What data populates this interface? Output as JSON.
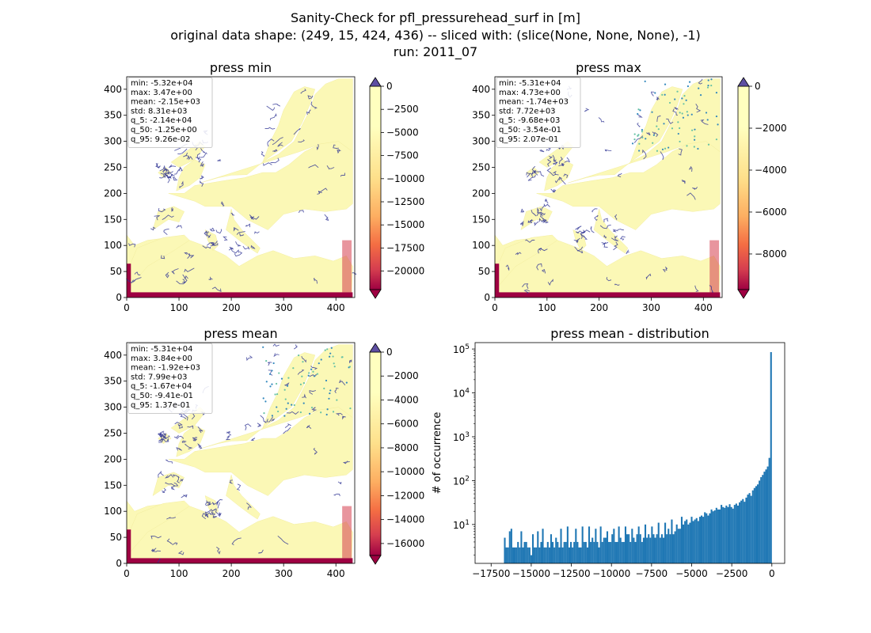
{
  "figure": {
    "title_lines": [
      "Sanity-Check for pfl_pressurehead_surf in [m]",
      "original data shape: (249, 15, 424, 436) -- sliced with: (slice(None, None, None), -1)",
      "run: 2011_07"
    ]
  },
  "colors": {
    "map_colormap": "Spectral",
    "cbar_over": "#5e4fa2",
    "cbar_under": "#9e0142",
    "histogram_bar": "#1f77b4",
    "river": "#313695"
  },
  "chart_data": [
    {
      "type": "heatmap",
      "id": "press_min",
      "title": "press min",
      "xlim": [
        0,
        436
      ],
      "ylim": [
        0,
        424
      ],
      "x_ticks": [
        0,
        100,
        200,
        300,
        400
      ],
      "y_ticks": [
        0,
        50,
        100,
        150,
        200,
        250,
        300,
        350,
        400
      ],
      "stats_lines": [
        "min: -5.32e+04",
        "max: 3.47e+00",
        "mean: -2.15e+03",
        "std: 8.31e+03",
        "q_5: -2.14e+04",
        "q_50: -1.25e+00",
        "q_95: 9.26e-02"
      ],
      "colorbar": {
        "vmin": -22000,
        "vmax": 0,
        "ticks": [
          0,
          -2500,
          -5000,
          -7500,
          -10000,
          -12500,
          -15000,
          -17500,
          -20000
        ],
        "extend": "both"
      }
    },
    {
      "type": "heatmap",
      "id": "press_max",
      "title": "press max",
      "xlim": [
        0,
        436
      ],
      "ylim": [
        0,
        424
      ],
      "x_ticks": [
        0,
        100,
        200,
        300,
        400
      ],
      "y_ticks": [
        0,
        50,
        100,
        150,
        200,
        250,
        300,
        350,
        400
      ],
      "stats_lines": [
        "min: -5.31e+04",
        "max: 4.73e+00",
        "mean: -1.74e+03",
        "std: 7.72e+03",
        "q_5: -9.68e+03",
        "q_50: -3.54e-01",
        "q_95: 2.07e-01"
      ],
      "colorbar": {
        "vmin": -9700,
        "vmax": 0,
        "ticks": [
          0,
          -2000,
          -4000,
          -6000,
          -8000
        ],
        "extend": "both"
      }
    },
    {
      "type": "heatmap",
      "id": "press_mean",
      "title": "press mean",
      "xlim": [
        0,
        436
      ],
      "ylim": [
        0,
        424
      ],
      "x_ticks": [
        0,
        100,
        200,
        300,
        400
      ],
      "y_ticks": [
        0,
        50,
        100,
        150,
        200,
        250,
        300,
        350,
        400
      ],
      "stats_lines": [
        "min: -5.31e+04",
        "max: 3.84e+00",
        "mean: -1.92e+03",
        "std: 7.99e+03",
        "q_5: -1.67e+04",
        "q_50: -9.41e-01",
        "q_95: 1.37e-01"
      ],
      "colorbar": {
        "vmin": -17000,
        "vmax": 0,
        "ticks": [
          0,
          -2000,
          -4000,
          -6000,
          -8000,
          -10000,
          -12000,
          -14000,
          -16000
        ],
        "extend": "both"
      }
    },
    {
      "type": "bar",
      "id": "press_mean_distribution",
      "title": "press mean - distribution",
      "ylabel": "# of occurrence",
      "xlim": [
        -18500,
        800
      ],
      "y_scale": "log",
      "ylim": [
        1.3,
        140000
      ],
      "x_ticks": [
        -17500,
        -15000,
        -12500,
        -10000,
        -7500,
        -5000,
        -2500,
        0
      ],
      "y_ticks": [
        10,
        100,
        1000,
        10000,
        100000
      ],
      "bin_range": [
        -16700,
        0
      ],
      "counts": [
        5,
        3,
        3,
        7,
        8,
        3,
        3,
        3,
        4,
        3,
        7,
        3,
        4,
        4,
        3,
        3,
        2,
        6,
        3,
        3,
        7,
        3,
        4,
        8,
        3,
        3,
        4,
        3,
        6,
        4,
        3,
        5,
        4,
        3,
        8,
        3,
        4,
        4,
        9,
        3,
        4,
        3,
        4,
        8,
        4,
        3,
        3,
        9,
        4,
        4,
        3,
        9,
        4,
        5,
        4,
        8,
        4,
        3,
        9,
        4,
        5,
        5,
        7,
        4,
        4,
        6,
        8,
        4,
        4,
        9,
        5,
        4,
        4,
        9,
        6,
        6,
        4,
        8,
        5,
        4,
        6,
        9,
        6,
        4,
        5,
        10,
        5,
        6,
        5,
        9,
        6,
        5,
        6,
        11,
        5,
        6,
        5,
        11,
        6,
        8,
        6,
        13,
        6,
        7,
        10,
        8,
        8,
        15,
        10,
        12,
        13,
        10,
        11,
        15,
        12,
        13,
        14,
        12,
        15,
        16,
        15,
        19,
        18,
        16,
        18,
        22,
        20,
        21,
        24,
        22,
        22,
        28,
        25,
        24,
        27,
        25,
        29,
        25,
        23,
        28,
        30,
        27,
        32,
        35,
        38,
        33,
        41,
        48,
        52,
        45,
        60,
        68,
        75,
        82,
        100,
        120,
        135,
        160,
        180,
        210,
        330,
        85000
      ]
    }
  ]
}
